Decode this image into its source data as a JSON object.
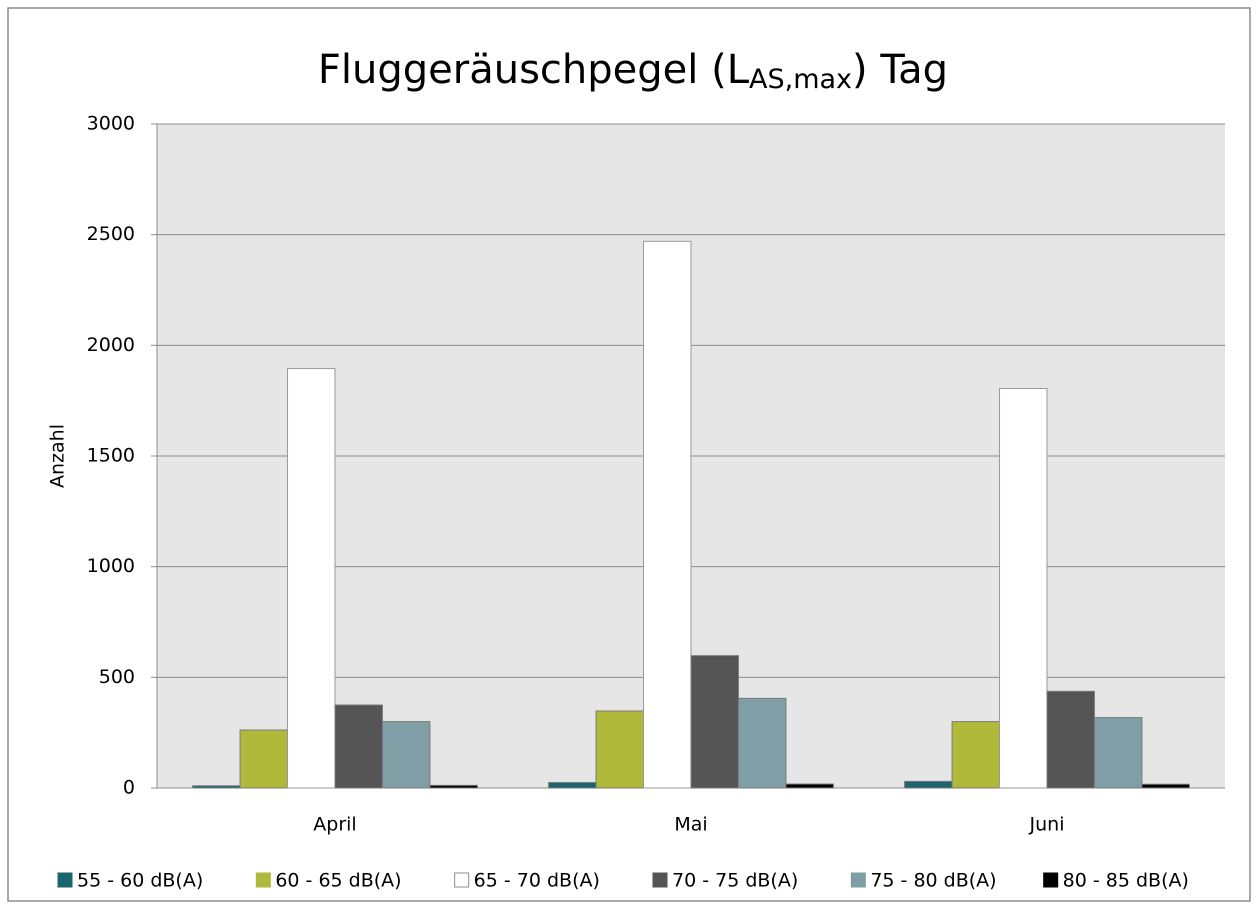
{
  "chart_data": {
    "type": "bar",
    "title": {
      "text": "Fluggeräuschpegel (L",
      "subscript": "AS,max",
      "suffix": ") Tag"
    },
    "y_label": "Anzahl",
    "categories": [
      "April",
      "Mai",
      "Juni"
    ],
    "series": [
      {
        "name": "55 - 60 dB(A)",
        "color": "#1b6470",
        "values": [
          10,
          25,
          30
        ]
      },
      {
        "name": "60 - 65 dB(A)",
        "color": "#b1b93a",
        "values": [
          262,
          348,
          300
        ]
      },
      {
        "name": "65 - 70 dB(A)",
        "color": "#ffffff",
        "values": [
          1895,
          2470,
          1805
        ]
      },
      {
        "name": "70 - 75 dB(A)",
        "color": "#555555",
        "values": [
          375,
          598,
          437
        ]
      },
      {
        "name": "75 - 80 dB(A)",
        "color": "#7f9ea6",
        "values": [
          300,
          405,
          318
        ]
      },
      {
        "name": "80 - 85 dB(A)",
        "color": "#000000",
        "values": [
          12,
          18,
          17
        ]
      }
    ],
    "ylim": [
      0,
      3000
    ],
    "yticks": [
      0,
      500,
      1000,
      1500,
      2000,
      2500,
      3000
    ],
    "grid": true,
    "legend": "bottom"
  }
}
